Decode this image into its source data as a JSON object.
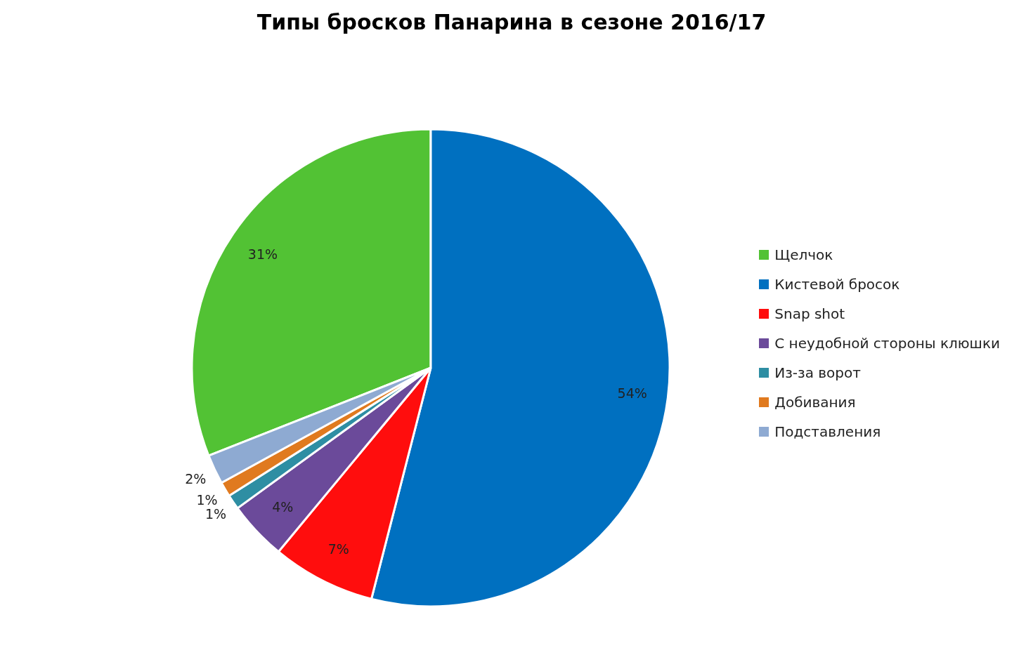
{
  "chart_data": {
    "type": "pie",
    "title": "Типы бросков Панарина в сезоне 2016/17",
    "categories": [
      "Щелчок",
      "Кистевой бросок",
      "Snap shot",
      "С неудобной стороны клюшки",
      "Из-за ворот",
      "Добивания",
      "Подставления"
    ],
    "values": [
      31,
      54,
      7,
      4,
      1,
      1,
      2
    ],
    "value_labels": [
      "31%",
      "54%",
      "7%",
      "4%",
      "1%",
      "1%",
      "2%"
    ],
    "colors": [
      "#52c234",
      "#0070c0",
      "#ff0d0d",
      "#6b4a9a",
      "#2e8ea3",
      "#e07a1f",
      "#8eaad2"
    ],
    "legend": "right"
  }
}
